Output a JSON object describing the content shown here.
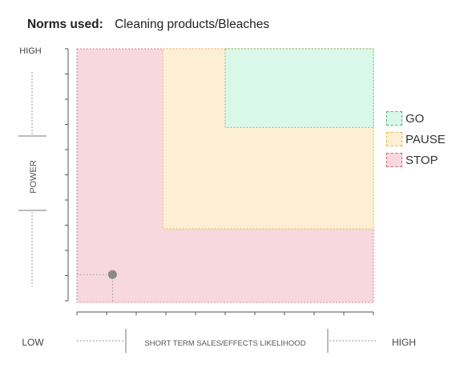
{
  "header": {
    "label": "Norms used:",
    "value": "Cleaning products/Bleaches"
  },
  "chart_data": {
    "type": "scatter",
    "xlabel": "SHORT TERM SALES/EFFECTS LIKELIHOOD",
    "ylabel": "POWER",
    "x_low_label": "LOW",
    "x_high_label": "HIGH",
    "y_high_label": "HIGH",
    "xlim": [
      0,
      10
    ],
    "ylim": [
      0,
      10
    ],
    "zones": [
      {
        "name": "STOP",
        "x": [
          0,
          10
        ],
        "y": [
          0,
          10
        ],
        "fill": "#f6d8de",
        "stroke": "#d9607b"
      },
      {
        "name": "PAUSE",
        "x": [
          2.9,
          10
        ],
        "y": [
          2.9,
          10
        ],
        "fill": "#fdefd4",
        "stroke": "#f0b040"
      },
      {
        "name": "GO",
        "x": [
          5,
          10
        ],
        "y": [
          6.9,
          10
        ],
        "fill": "#d9f8ea",
        "stroke": "#48b878"
      }
    ],
    "points": [
      {
        "x": 1.2,
        "y": 1.1,
        "color": "#8a8a8a"
      }
    ],
    "legend": [
      "GO",
      "PAUSE",
      "STOP"
    ],
    "legend_position": "right"
  }
}
